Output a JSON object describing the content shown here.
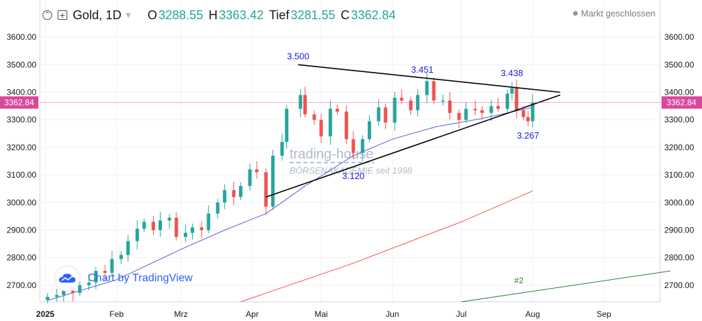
{
  "legend": {
    "symbol": "Gold, 1D",
    "labels": {
      "o": "O",
      "h": "H",
      "l": "Tief",
      "c": "C"
    },
    "values": {
      "o": "3288.55",
      "h": "3363.42",
      "l": "3281.55",
      "c": "3362.84"
    }
  },
  "status": "Markt geschlossen",
  "branding": {
    "tradingview": "Chart by TradingView"
  },
  "watermark": {
    "line1": "trading-house",
    "line2": "BÖRSENAKADEMIE seit 1998"
  },
  "colors": {
    "up": "#26a69a",
    "down": "#ef5350",
    "ma_fast": "#5b5bd6",
    "ma_slow": "#ef5350",
    "trend2": "#2e7d32",
    "pricetag": "#d9489b",
    "annotation": "#1a1adb"
  },
  "chart_data": {
    "type": "candlestick",
    "instrument": "Gold",
    "interval": "1D",
    "ylim": [
      2640,
      3660
    ],
    "y_ticks": [
      "3600.00",
      "3500.00",
      "3400.00",
      "3300.00",
      "3200.00",
      "3100.00",
      "3000.00",
      "2900.00",
      "2800.00",
      "2700.00"
    ],
    "x_labels": [
      {
        "date": "2025-01-01",
        "label": "2025"
      },
      {
        "date": "2025-02-01",
        "label": "Feb"
      },
      {
        "date": "2025-03-01",
        "label": "Mrz"
      },
      {
        "date": "2025-04-01",
        "label": "Apr"
      },
      {
        "date": "2025-05-01",
        "label": "Mai"
      },
      {
        "date": "2025-06-01",
        "label": "Jun"
      },
      {
        "date": "2025-07-01",
        "label": "Jul"
      },
      {
        "date": "2025-08-01",
        "label": "Aug"
      },
      {
        "date": "2025-09-01",
        "label": "Sep"
      }
    ],
    "last_price": "3362.84",
    "closes": [
      [
        "2025-01-02",
        2658
      ],
      [
        "2025-01-06",
        2665
      ],
      [
        "2025-01-09",
        2680
      ],
      [
        "2025-01-13",
        2672
      ],
      [
        "2025-01-16",
        2700
      ],
      [
        "2025-01-20",
        2710
      ],
      [
        "2025-01-23",
        2752
      ],
      [
        "2025-01-27",
        2745
      ],
      [
        "2025-01-30",
        2795
      ],
      [
        "2025-02-03",
        2810
      ],
      [
        "2025-02-06",
        2860
      ],
      [
        "2025-02-10",
        2905
      ],
      [
        "2025-02-13",
        2930
      ],
      [
        "2025-02-17",
        2900
      ],
      [
        "2025-02-20",
        2935
      ],
      [
        "2025-02-24",
        2945
      ],
      [
        "2025-02-27",
        2875
      ],
      [
        "2025-03-03",
        2890
      ],
      [
        "2025-03-06",
        2910
      ],
      [
        "2025-03-10",
        2900
      ],
      [
        "2025-03-13",
        2960
      ],
      [
        "2025-03-17",
        3000
      ],
      [
        "2025-03-20",
        3045
      ],
      [
        "2025-03-24",
        3020
      ],
      [
        "2025-03-27",
        3060
      ],
      [
        "2025-03-31",
        3120
      ],
      [
        "2025-04-03",
        3110
      ],
      [
        "2025-04-07",
        2985
      ],
      [
        "2025-04-10",
        3170
      ],
      [
        "2025-04-14",
        3220
      ],
      [
        "2025-04-16",
        3340
      ],
      [
        "2025-04-22",
        3390
      ],
      [
        "2025-04-24",
        3320
      ],
      [
        "2025-04-28",
        3300
      ],
      [
        "2025-05-01",
        3240
      ],
      [
        "2025-05-05",
        3340
      ],
      [
        "2025-05-08",
        3330
      ],
      [
        "2025-05-12",
        3230
      ],
      [
        "2025-05-15",
        3180
      ],
      [
        "2025-05-19",
        3230
      ],
      [
        "2025-05-22",
        3295
      ],
      [
        "2025-05-26",
        3345
      ],
      [
        "2025-05-29",
        3290
      ],
      [
        "2025-06-02",
        3380
      ],
      [
        "2025-06-05",
        3370
      ],
      [
        "2025-06-09",
        3335
      ],
      [
        "2025-06-12",
        3390
      ],
      [
        "2025-06-16",
        3440
      ],
      [
        "2025-06-19",
        3370
      ],
      [
        "2025-06-23",
        3370
      ],
      [
        "2025-06-26",
        3325
      ],
      [
        "2025-06-30",
        3300
      ],
      [
        "2025-07-03",
        3340
      ],
      [
        "2025-07-07",
        3335
      ],
      [
        "2025-07-10",
        3325
      ],
      [
        "2025-07-14",
        3350
      ],
      [
        "2025-07-17",
        3340
      ],
      [
        "2025-07-21",
        3395
      ],
      [
        "2025-07-23",
        3415
      ],
      [
        "2025-07-25",
        3335
      ],
      [
        "2025-07-28",
        3310
      ],
      [
        "2025-07-30",
        3295
      ],
      [
        "2025-08-01",
        3362.84
      ]
    ],
    "series": [
      {
        "type": "line",
        "color": "#5b5bd6",
        "points": [
          [
            "2025-01-02",
            2645
          ],
          [
            "2025-02-01",
            2720
          ],
          [
            "2025-03-01",
            2830
          ],
          [
            "2025-03-20",
            2900
          ],
          [
            "2025-04-07",
            2960
          ],
          [
            "2025-04-24",
            3060
          ],
          [
            "2025-05-15",
            3170
          ],
          [
            "2025-06-01",
            3230
          ],
          [
            "2025-06-20",
            3275
          ],
          [
            "2025-07-10",
            3305
          ],
          [
            "2025-08-01",
            3345
          ]
        ]
      },
      {
        "type": "line",
        "color": "#ef5350",
        "points": [
          [
            "2025-03-27",
            2640
          ],
          [
            "2025-05-15",
            2780
          ],
          [
            "2025-07-01",
            2930
          ],
          [
            "2025-08-01",
            3042
          ]
        ]
      },
      {
        "type": "line",
        "color": "#2e7d32",
        "label": "#2",
        "points": [
          [
            "2025-07-01",
            2640
          ],
          [
            "2025-09-30",
            2752
          ]
        ]
      }
    ],
    "trendlines": [
      {
        "from": [
          "2025-04-21",
          3500
        ],
        "to": [
          "2025-08-13",
          3400
        ]
      },
      {
        "from": [
          "2025-04-07",
          3020
        ],
        "to": [
          "2025-08-13",
          3390
        ]
      }
    ],
    "annotations": [
      {
        "date": "2025-04-21",
        "price": 3500,
        "text": "3.500"
      },
      {
        "date": "2025-06-14",
        "price": 3451,
        "text": "3.451"
      },
      {
        "date": "2025-07-23",
        "price": 3438,
        "text": "3.438"
      },
      {
        "date": "2025-05-15",
        "price": 3120,
        "text": "3.120"
      },
      {
        "date": "2025-07-30",
        "price": 3267,
        "text": "3.267"
      }
    ]
  }
}
